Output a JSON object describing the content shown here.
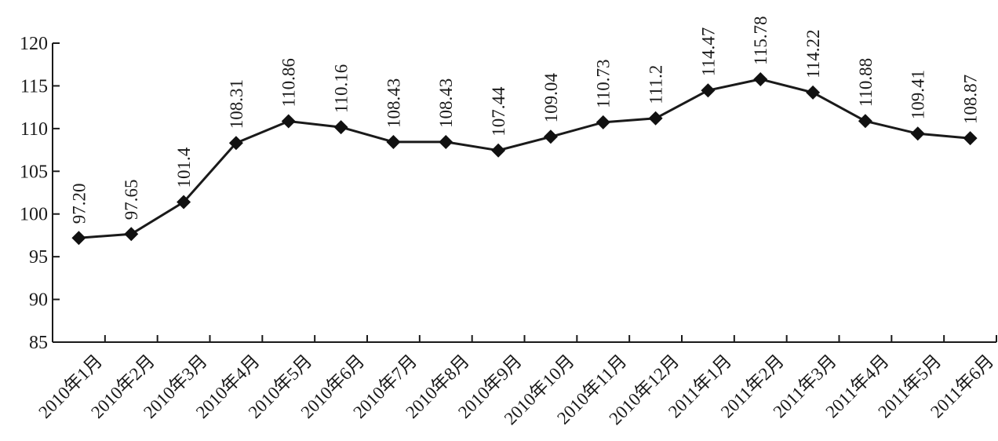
{
  "chart_data": {
    "type": "line",
    "title": "",
    "xlabel": "",
    "ylabel": "",
    "ylim": [
      85,
      120
    ],
    "yticks": [
      85,
      90,
      95,
      100,
      105,
      110,
      115,
      120
    ],
    "grid": false,
    "legend": "none",
    "marker": "diamond",
    "categories": [
      "2010年1月",
      "2010年2月",
      "2010年3月",
      "2010年4月",
      "2010年5月",
      "2010年6月",
      "2010年7月",
      "2010年8月",
      "2010年9月",
      "2010年10月",
      "2010年11月",
      "2010年12月",
      "2011年1月",
      "2011年2月",
      "2011年3月",
      "2011年4月",
      "2011年5月",
      "2011年6月"
    ],
    "values": [
      97.2,
      97.65,
      101.4,
      108.31,
      110.86,
      110.16,
      108.43,
      108.43,
      107.44,
      109.04,
      110.73,
      111.2,
      114.47,
      115.78,
      114.22,
      110.88,
      109.41,
      108.87
    ],
    "value_labels": [
      "97.20",
      "97.65",
      "101.4",
      "108.31",
      "110.86",
      "110.16",
      "108.43",
      "108.43",
      "107.44",
      "109.04",
      "110.73",
      "111.2",
      "114.47",
      "115.78",
      "114.22",
      "110.88",
      "109.41",
      "108.87"
    ],
    "colors": {
      "line": "#1a1a1a",
      "marker": "#111111",
      "axis": "#1a1a1a"
    }
  }
}
